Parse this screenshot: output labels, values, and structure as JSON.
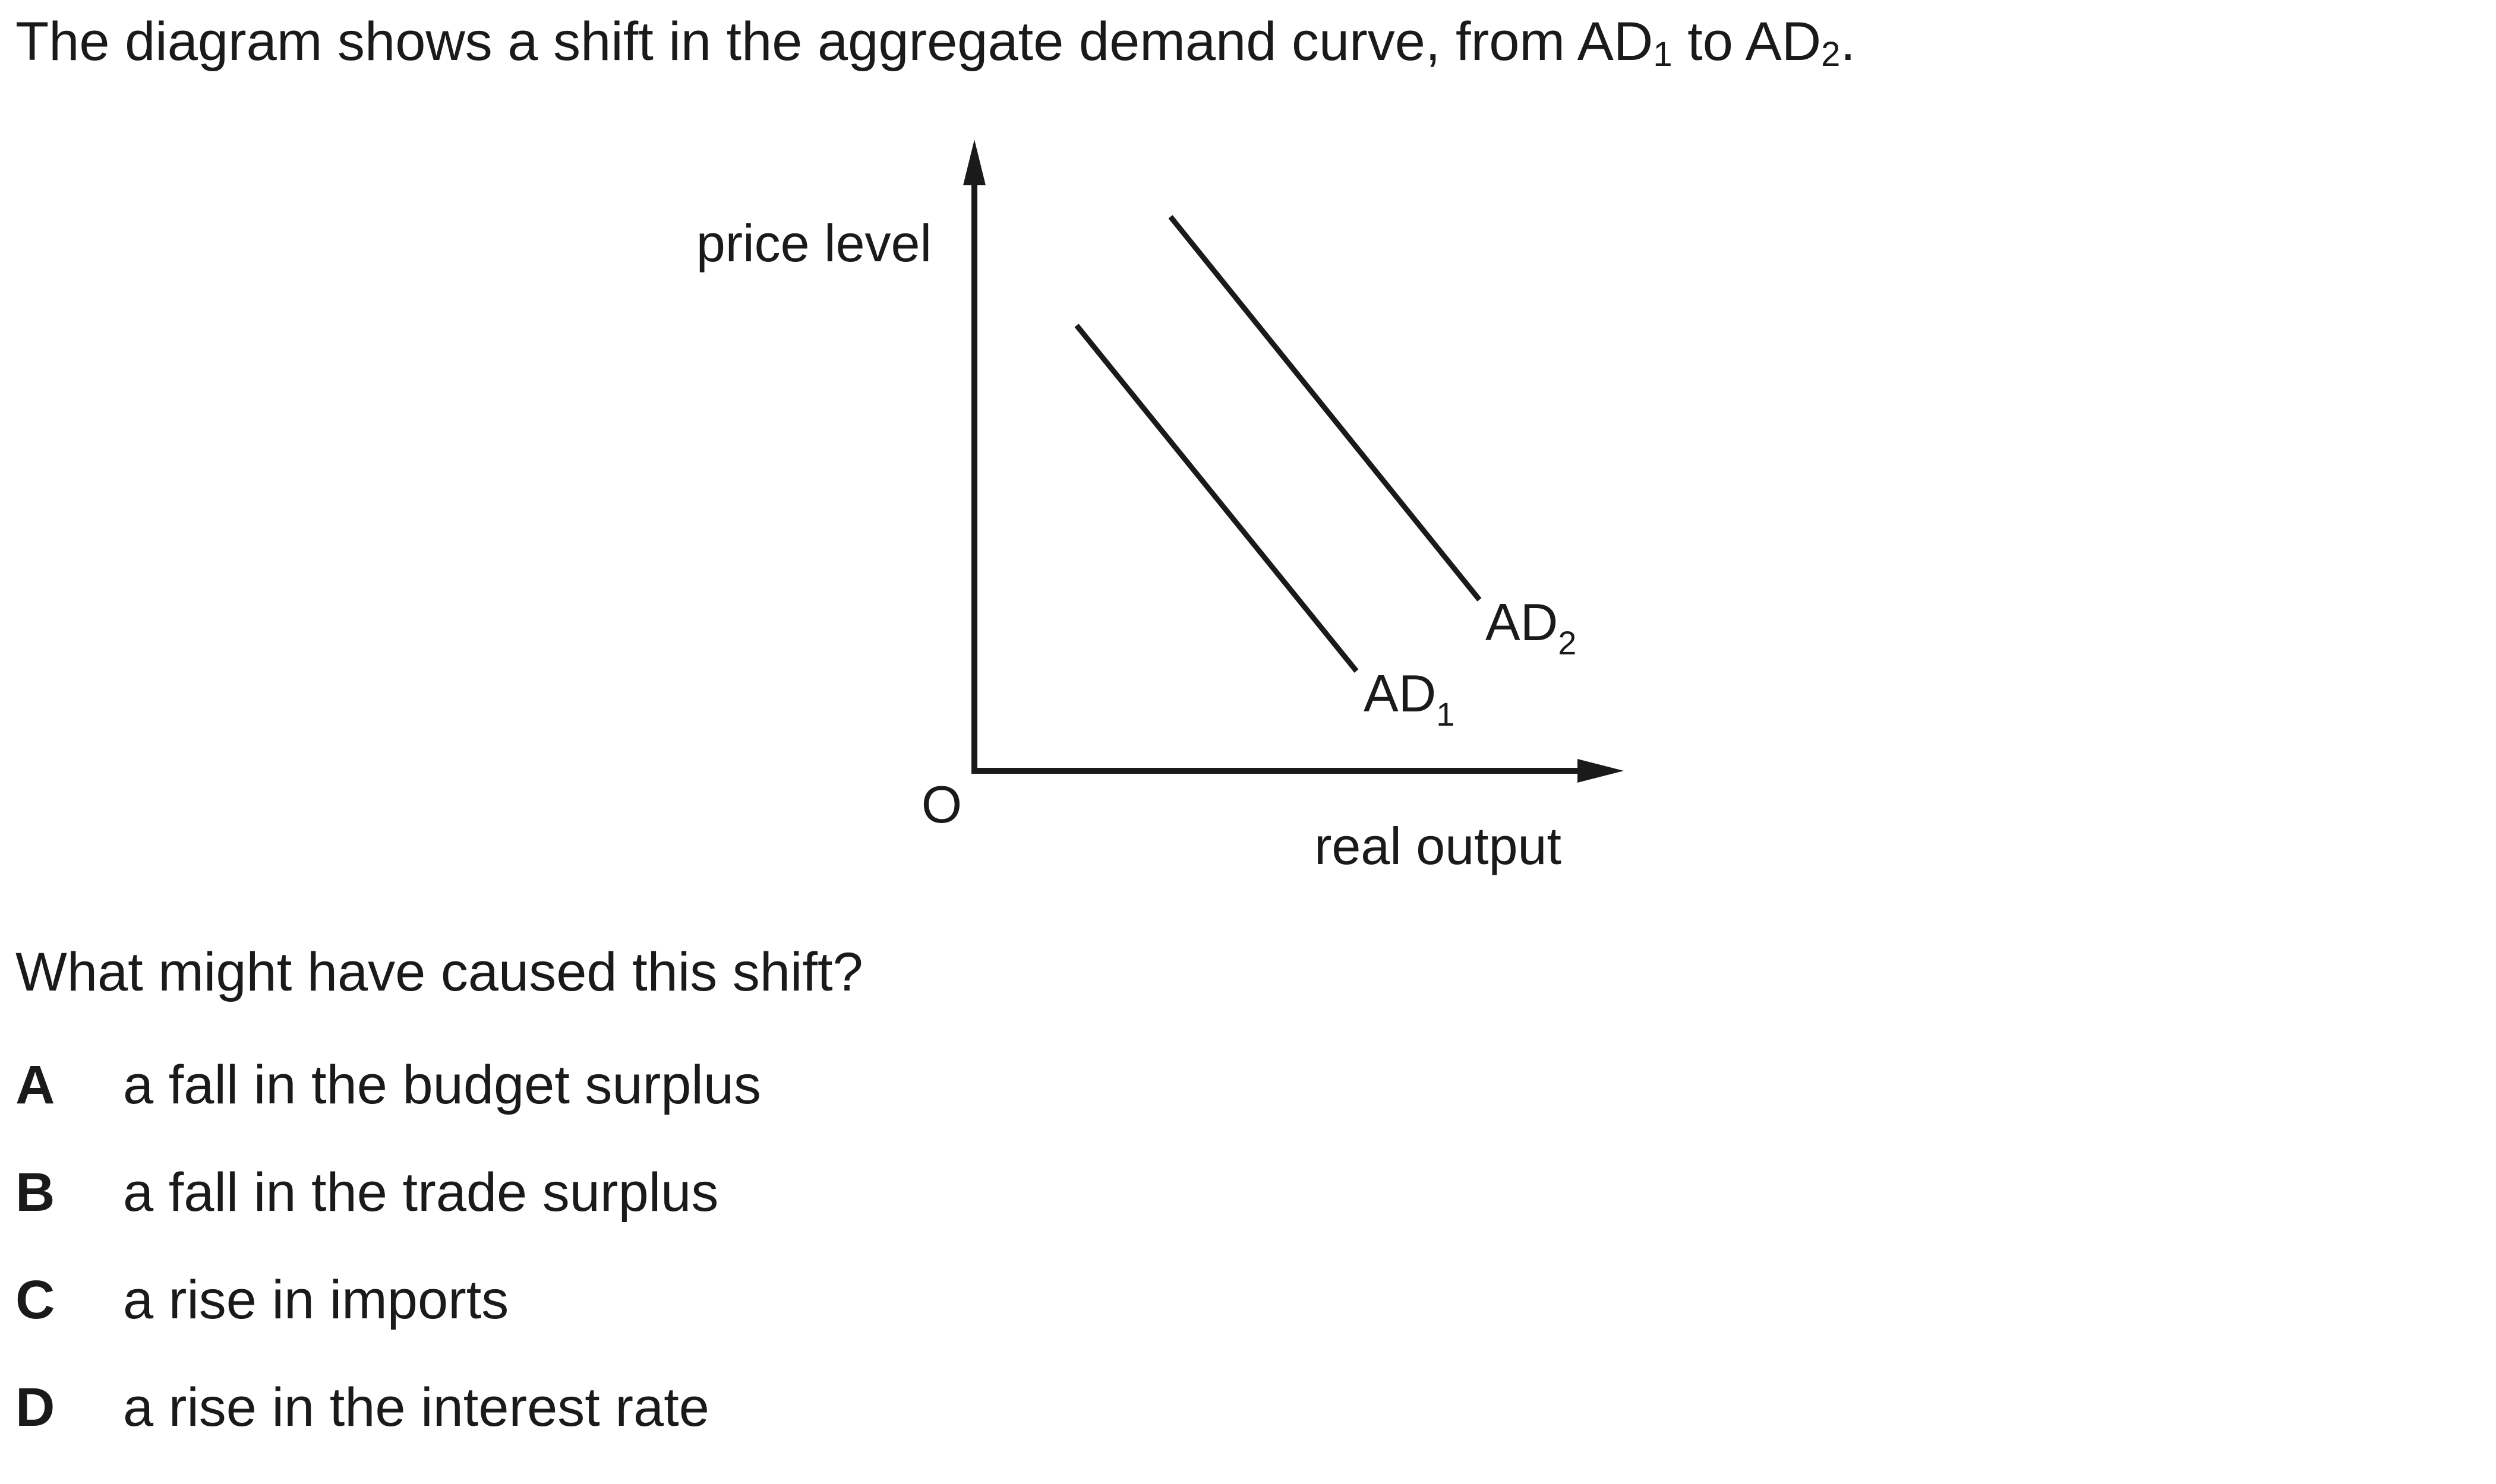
{
  "intro": {
    "text_before": "The diagram shows a shift in the aggregate demand curve, from AD",
    "sub_1": "1",
    "text_middle": " to AD",
    "sub_2": "2",
    "text_after": "."
  },
  "diagram": {
    "y_axis_label": "price level",
    "x_axis_label": "real output",
    "origin_label": "O",
    "curves": [
      {
        "name": "AD",
        "subscript": "1"
      },
      {
        "name": "AD",
        "subscript": "2"
      }
    ],
    "colors": {
      "ink": "#1a1a1a"
    }
  },
  "question": "What might have caused this shift?",
  "options": [
    {
      "letter": "A",
      "text": "a fall in the budget surplus"
    },
    {
      "letter": "B",
      "text": "a fall in the trade surplus"
    },
    {
      "letter": "C",
      "text": "a rise in imports"
    },
    {
      "letter": "D",
      "text": "a rise in the interest rate"
    }
  ]
}
